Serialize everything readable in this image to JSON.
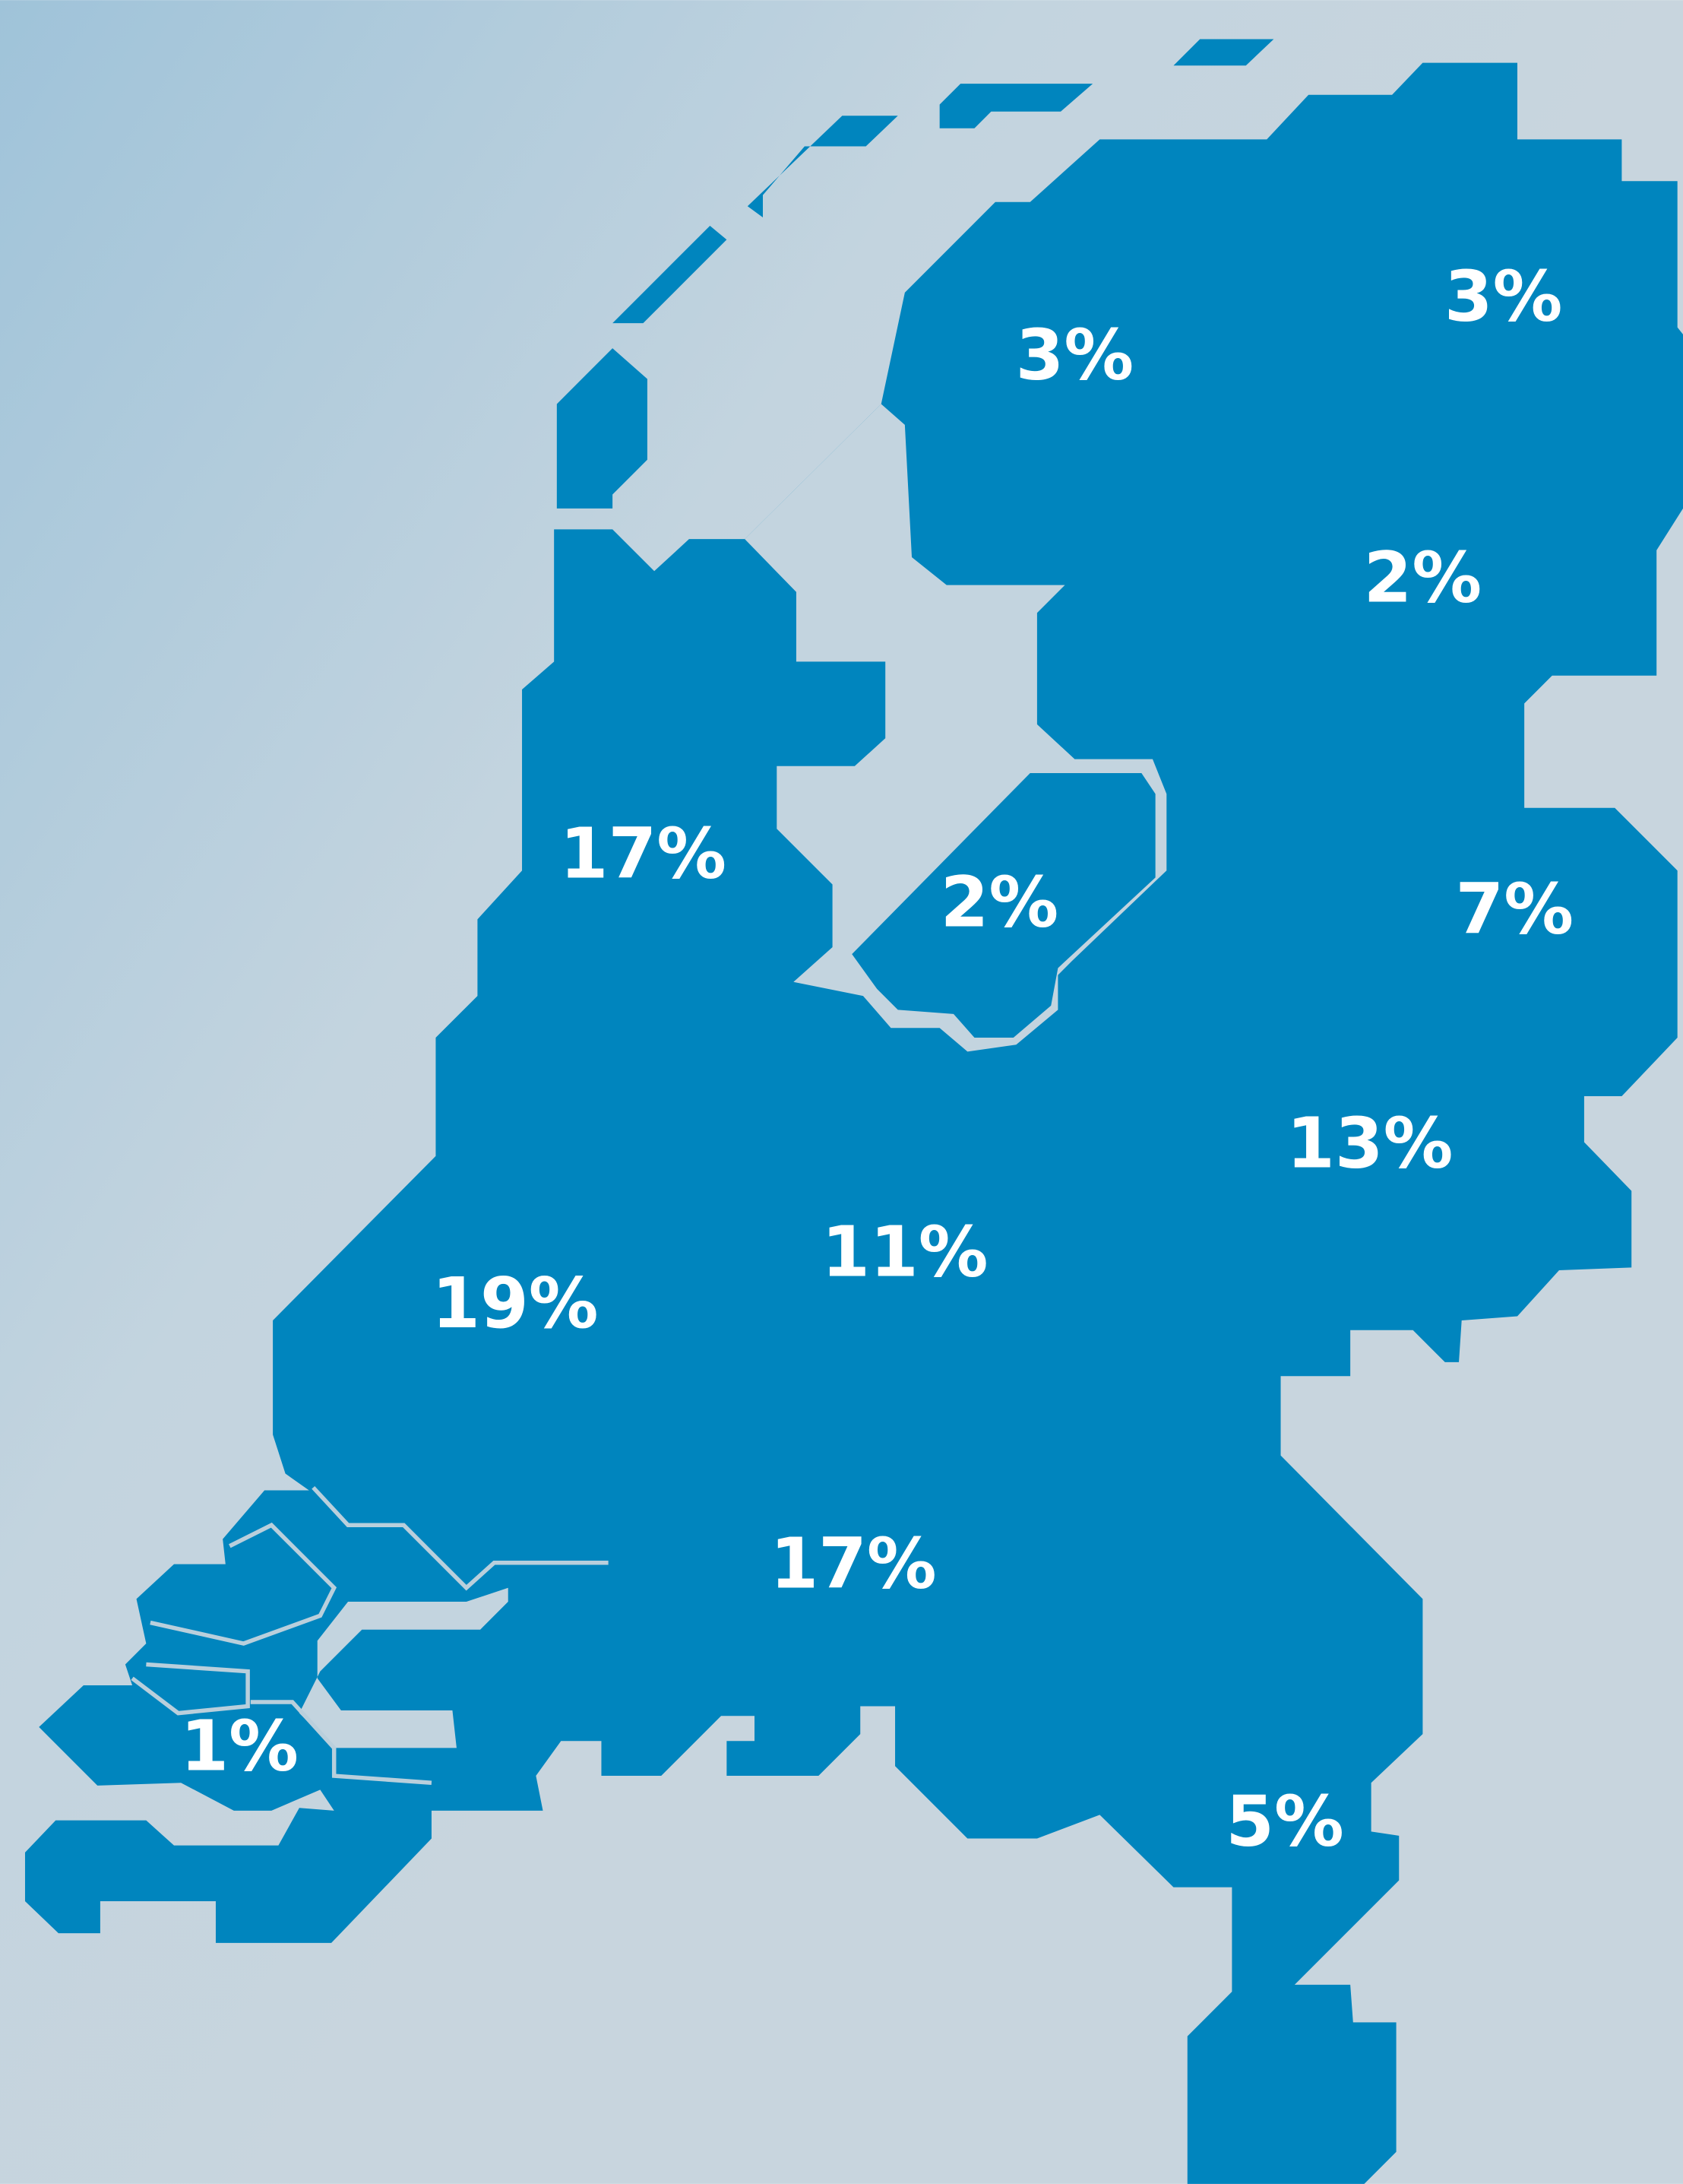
{
  "map": {
    "values": [
      3,
      3,
      2,
      17,
      2,
      7,
      13,
      11,
      19,
      17,
      1,
      5
    ],
    "value_labels": [
      "3%",
      "3%",
      "2%",
      "17%",
      "2%",
      "7%",
      "13%",
      "11%",
      "19%",
      "17%",
      "1%",
      "5%"
    ]
  }
}
